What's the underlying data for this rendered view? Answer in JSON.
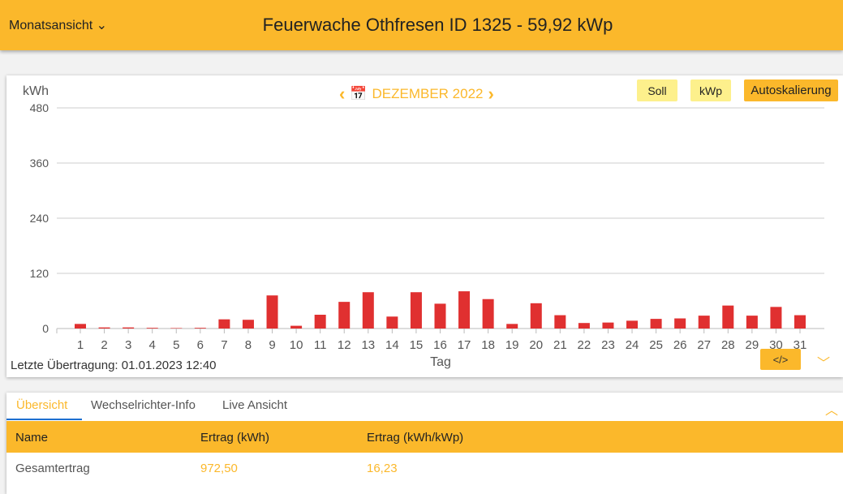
{
  "header": {
    "view_select": "Monatsansicht",
    "title": "Feuerwache Othfresen ID 1325 - 59,92 kWp"
  },
  "toolbar": {
    "month": "DEZEMBER 2022",
    "soll": "Soll",
    "kwp": "kWp",
    "autoscale": "Autoskalierung"
  },
  "footer": {
    "last_transfer": "Letzte Übertragung: 01.01.2023 12:40"
  },
  "colors": {
    "accent": "#fbb82b",
    "bar": "#e03030"
  },
  "chart_data": {
    "type": "bar",
    "ylabel": "kWh",
    "xlabel": "Tag",
    "ylim": [
      0,
      480
    ],
    "yticks": [
      0,
      120,
      240,
      360,
      480
    ],
    "grid": true,
    "categories": [
      "1",
      "2",
      "3",
      "4",
      "5",
      "6",
      "7",
      "8",
      "9",
      "10",
      "11",
      "12",
      "13",
      "14",
      "15",
      "16",
      "17",
      "18",
      "19",
      "20",
      "21",
      "22",
      "23",
      "24",
      "25",
      "26",
      "27",
      "28",
      "29",
      "30",
      "31"
    ],
    "values": [
      10,
      2.4,
      2.4,
      1.5,
      1,
      1.5,
      20,
      19,
      72,
      6,
      30,
      58,
      79,
      26,
      79,
      54,
      81,
      64,
      10,
      55,
      29,
      12,
      13,
      17,
      21,
      22,
      28,
      50,
      28,
      47,
      29
    ]
  },
  "tabs": [
    {
      "label": "Übersicht"
    },
    {
      "label": "Wechselrichter-Info"
    },
    {
      "label": "Live Ansicht"
    }
  ],
  "table": {
    "headers": [
      "Name",
      "Ertrag (kWh)",
      "Ertrag (kWh/kWp)"
    ],
    "rows": [
      [
        "Gesamtertrag",
        "972,50",
        "16,23"
      ]
    ]
  }
}
